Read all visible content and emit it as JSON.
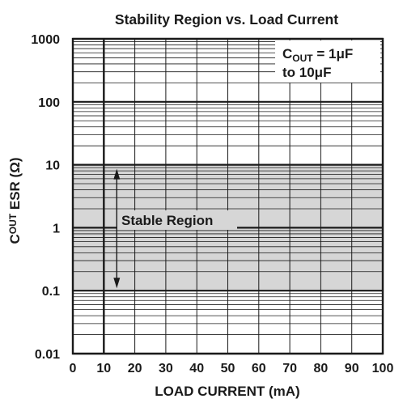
{
  "chart_data": {
    "type": "area",
    "title": "Stability Region vs. Load Current",
    "xlabel": "LOAD CURRENT (mA)",
    "ylabel": {
      "main": "C",
      "sub": "OUT",
      "rest": " ESR (Ω)"
    },
    "x_ticks": [
      "0",
      "10",
      "20",
      "30",
      "40",
      "50",
      "60",
      "70",
      "80",
      "90",
      "100"
    ],
    "y_ticks": [
      "0.01",
      "0.1",
      "1",
      "10",
      "100",
      "1000"
    ],
    "xlim": [
      0,
      100
    ],
    "ylim": [
      0.01,
      1000
    ],
    "y_scale": "log",
    "grid": true,
    "stable_region": {
      "x": [
        0,
        100
      ],
      "esr_min": 0.1,
      "esr_max": 10
    },
    "arrow_x": 10,
    "annotations": {
      "region_label": "Stable Region",
      "cout_box": {
        "main": "C",
        "sub": "OUT",
        "rest": " = 1μF",
        "line2": "to 10μF"
      }
    },
    "colors": {
      "region": "#d6d6d6",
      "grid": "#1a1a1a",
      "text": "#1a1a1a"
    }
  }
}
